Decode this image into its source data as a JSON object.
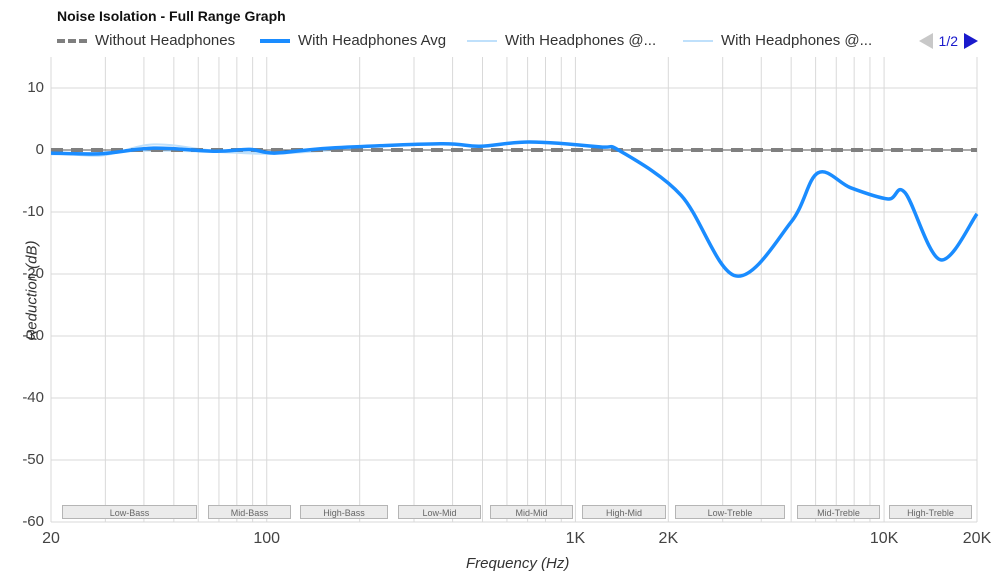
{
  "chart": {
    "title": "Noise Isolation - Full Range Graph",
    "legend": [
      {
        "label": "Without Headphones",
        "style": "dashed",
        "color": "#7f7f7f"
      },
      {
        "label": "With Headphones Avg",
        "style": "solid-thick",
        "color": "#1a8cff"
      },
      {
        "label": "With Headphones @...",
        "style": "solid-thin",
        "color": "#bfe0fb"
      },
      {
        "label": "With Headphones @...",
        "style": "solid-thin",
        "color": "#bfe0fb"
      }
    ],
    "pager": {
      "text": "1/2",
      "prev_icon": "triangle-left-icon",
      "next_icon": "triangle-right-icon"
    },
    "ylabel": "Reduction (dB)",
    "xlabel": "Frequency (Hz)",
    "yticks": [
      "10",
      "0",
      "-10",
      "-20",
      "-30",
      "-40",
      "-50",
      "-60"
    ],
    "xticks": [
      "20",
      "100",
      "1K",
      "2K",
      "10K",
      "20K"
    ],
    "bands": [
      "Low-Bass",
      "Mid-Bass",
      "High-Bass",
      "Low-Mid",
      "Mid-Mid",
      "High-Mid",
      "Low-Treble",
      "Mid-Treble",
      "High-Treble"
    ]
  },
  "chart_data": {
    "type": "line",
    "title": "Noise Isolation - Full Range Graph",
    "xlabel": "Frequency (Hz)",
    "ylabel": "Reduction (dB)",
    "xscale": "log",
    "xlim": [
      20,
      20000
    ],
    "ylim": [
      -60,
      15
    ],
    "grid": true,
    "legend_position": "top",
    "x_tick_labels": [
      "20",
      "100",
      "1K",
      "2K",
      "10K",
      "20K"
    ],
    "y_tick_labels": [
      "10",
      "0",
      "-10",
      "-20",
      "-30",
      "-40",
      "-50",
      "-60"
    ],
    "frequency_bands": [
      "Low-Bass",
      "Mid-Bass",
      "High-Bass",
      "Low-Mid",
      "Mid-Mid",
      "High-Mid",
      "Low-Treble",
      "Mid-Treble",
      "High-Treble"
    ],
    "series": [
      {
        "name": "Without Headphones",
        "style": "dashed",
        "color": "#7f7f7f",
        "x": [
          20,
          20000
        ],
        "values": [
          0,
          0
        ]
      },
      {
        "name": "With Headphones Avg",
        "style": "solid",
        "color": "#1a8cff",
        "x": [
          20,
          29,
          43,
          68,
          88,
          106,
          160,
          365,
          490,
          710,
          1200,
          1400,
          2200,
          3300,
          5000,
          6100,
          7800,
          10300,
          11700,
          15200,
          20000
        ],
        "values": [
          -0.5,
          -0.6,
          0.3,
          -0.2,
          0.1,
          -0.5,
          0.3,
          1.0,
          0.6,
          1.3,
          0.5,
          -0.2,
          -7.3,
          -20.3,
          -11.6,
          -3.7,
          -6.1,
          -7.9,
          -6.9,
          -17.7,
          -10.3
        ]
      },
      {
        "name": "With Headphones @...",
        "style": "solid-thin",
        "color": "#bfe0fb",
        "x": [
          20,
          29,
          43,
          68,
          106,
          200
        ],
        "values": [
          -0.3,
          -0.9,
          0.9,
          -0.1,
          -0.3,
          0.2
        ]
      },
      {
        "name": "With Headphones @...",
        "style": "solid-thin",
        "color": "#bfe0fb",
        "x": [
          20,
          29,
          43,
          68,
          106,
          200
        ],
        "values": [
          -0.7,
          -0.4,
          -0.1,
          -0.3,
          -0.6,
          0.3
        ]
      }
    ]
  }
}
